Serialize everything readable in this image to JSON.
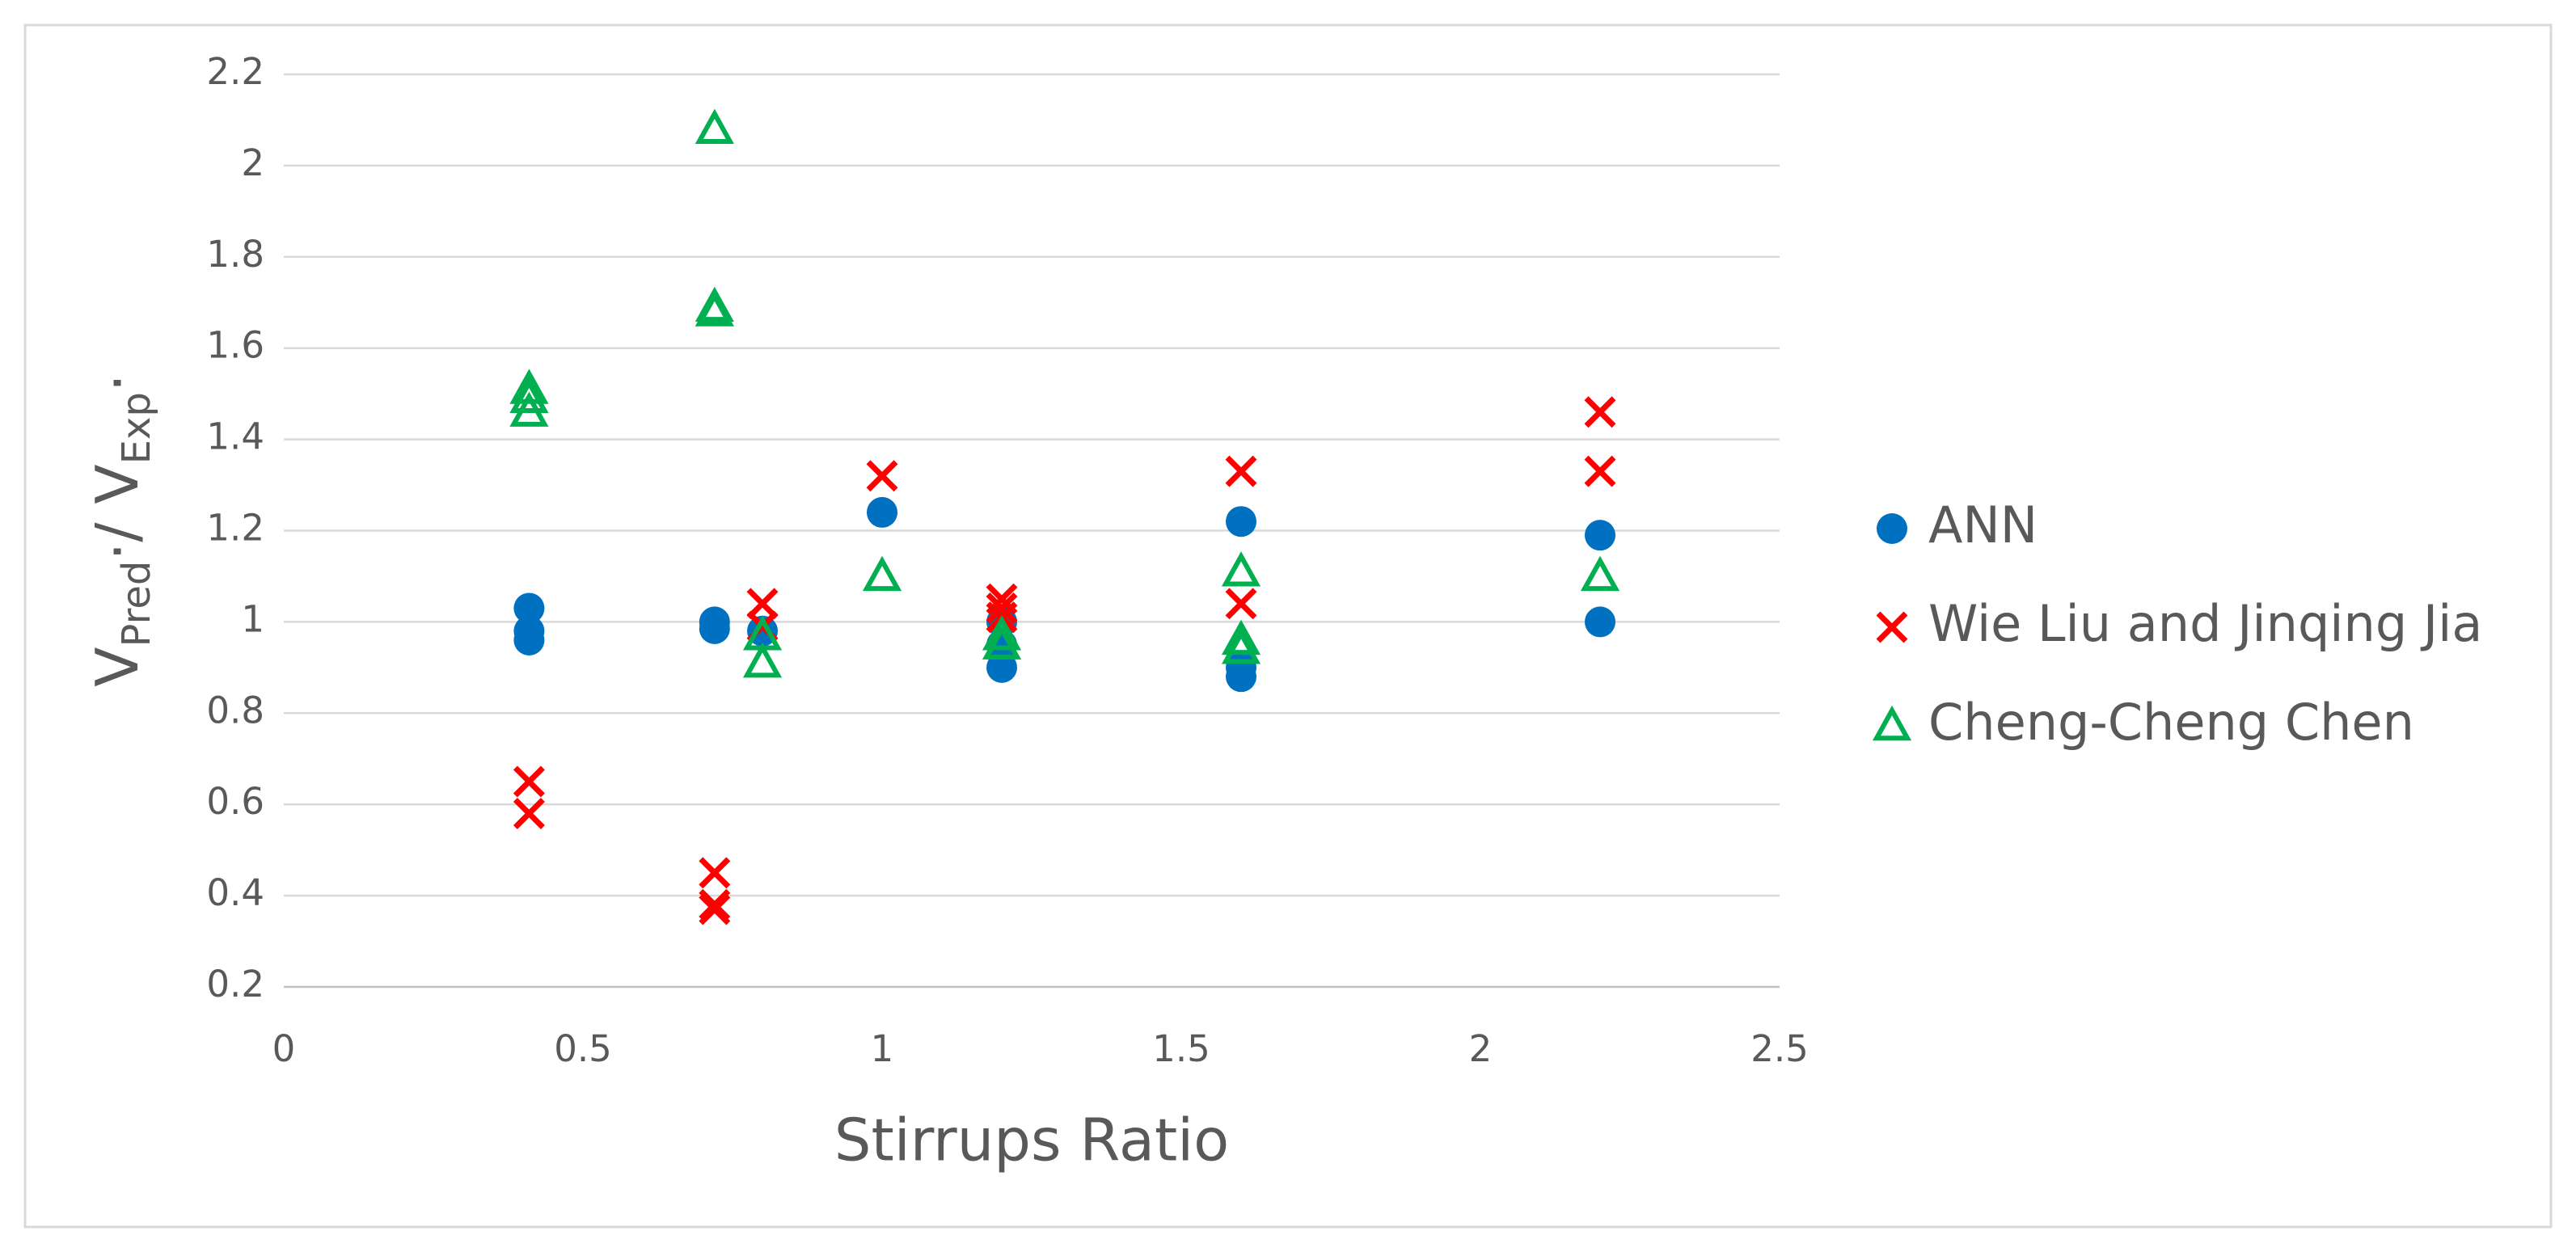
{
  "chart_data": {
    "type": "scatter",
    "x_label": "Stirrups Ratio",
    "y_label": [
      {
        "text": "V"
      },
      {
        "text": "Pred",
        "sub": true
      },
      {
        "text": "·/ V"
      },
      {
        "text": "Exp",
        "sub": true
      },
      {
        "text": "·"
      }
    ],
    "xlim": [
      0,
      2.5
    ],
    "xticks": [
      0,
      0.5,
      1,
      1.5,
      2,
      2.5
    ],
    "ylim": [
      0.2,
      2.2
    ],
    "yticks": [
      0.2,
      0.4,
      0.6,
      0.8,
      1,
      1.2,
      1.4,
      1.6,
      1.8,
      2,
      2.2
    ],
    "grid": true,
    "legend": "right",
    "series": [
      {
        "name": "ANN",
        "color": "#0070c0",
        "marker": "circle",
        "x": [
          0.41,
          0.41,
          0.41,
          0.72,
          0.72,
          0.8,
          1.0,
          1.2,
          1.2,
          1.2,
          1.6,
          1.6,
          1.6,
          2.2,
          2.2
        ],
        "values": [
          1.03,
          0.98,
          0.96,
          1.0,
          0.985,
          0.98,
          1.24,
          1.0,
          0.95,
          0.9,
          1.22,
          0.9,
          0.88,
          1.19,
          1.0
        ]
      },
      {
        "name": "Wie Liu and Jinqing Jia",
        "color": "#ff0000",
        "marker": "x",
        "x": [
          0.41,
          0.41,
          0.72,
          0.72,
          0.72,
          0.8,
          0.8,
          1.0,
          1.2,
          1.2,
          1.2,
          1.6,
          1.6,
          2.2,
          2.2
        ],
        "values": [
          0.65,
          0.58,
          0.45,
          0.38,
          0.37,
          1.04,
          0.99,
          1.32,
          1.05,
          1.03,
          1.01,
          1.33,
          1.04,
          1.46,
          1.33
        ]
      },
      {
        "name": "Cheng-Cheng Chen",
        "color": "#00b050",
        "marker": "triangle",
        "x": [
          0.41,
          0.41,
          0.41,
          0.72,
          0.72,
          0.72,
          0.8,
          0.8,
          1.0,
          1.2,
          1.2,
          1.6,
          1.6,
          1.6,
          2.2
        ],
        "values": [
          1.51,
          1.49,
          1.46,
          2.08,
          1.69,
          1.68,
          0.97,
          0.91,
          1.1,
          0.97,
          0.95,
          1.11,
          0.96,
          0.94,
          1.1
        ]
      }
    ]
  }
}
